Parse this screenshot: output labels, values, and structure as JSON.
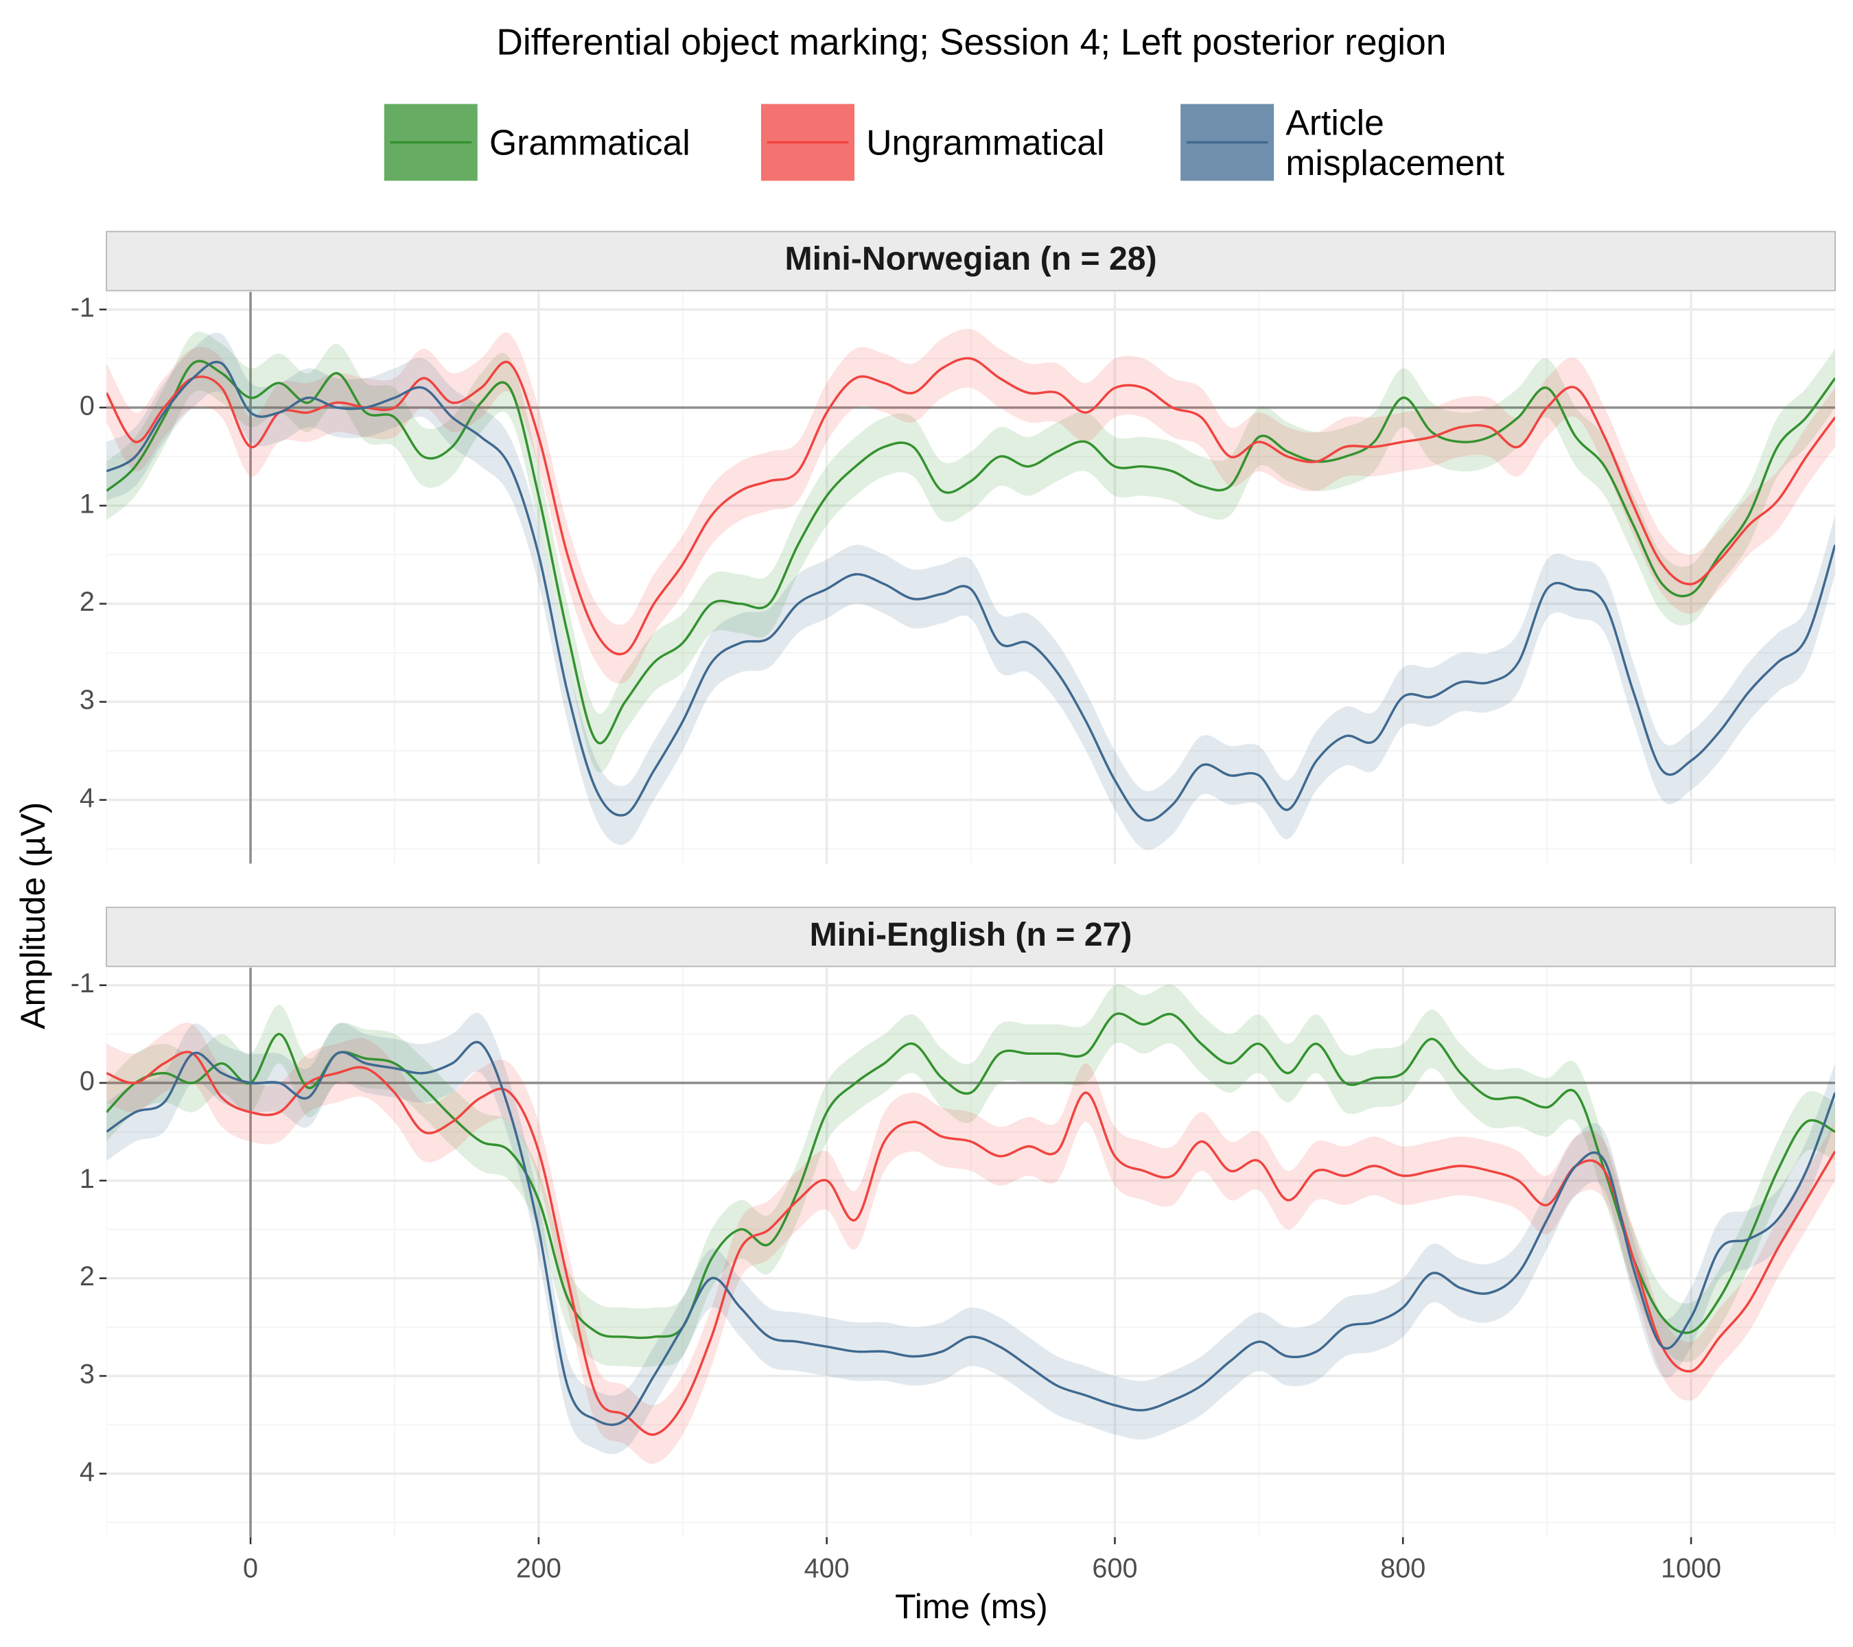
{
  "chart_data": [
    {
      "type": "line",
      "title": "Differential object marking; Session 4; Left posterior region",
      "facet": "Mini-Norwegian (n = 28)",
      "ylabel": "Amplitude (µV)",
      "x": [
        -100,
        -80,
        -60,
        -40,
        -20,
        0,
        20,
        40,
        60,
        80,
        100,
        120,
        140,
        160,
        180,
        200,
        220,
        240,
        260,
        280,
        300,
        320,
        340,
        360,
        380,
        400,
        420,
        440,
        460,
        480,
        500,
        520,
        540,
        560,
        580,
        600,
        620,
        640,
        660,
        680,
        700,
        720,
        740,
        760,
        780,
        800,
        820,
        840,
        860,
        880,
        900,
        920,
        940,
        960,
        980,
        1000,
        1020,
        1040,
        1060,
        1080,
        1100
      ],
      "xlim": [
        -100,
        1100
      ],
      "xticks": [
        0,
        200,
        400,
        600,
        800,
        1000
      ],
      "ylim": [
        -1.18,
        4.65
      ],
      "yticks": [
        -1,
        0,
        1,
        2,
        3,
        4
      ],
      "y_reversed": true,
      "grid": true,
      "series": [
        {
          "name": "Grammatical",
          "color": "#33922f",
          "error": 0.3,
          "values": [
            0.85,
            0.6,
            0.1,
            -0.45,
            -0.35,
            -0.1,
            -0.25,
            -0.05,
            -0.35,
            0.05,
            0.1,
            0.5,
            0.4,
            -0.05,
            -0.2,
            0.9,
            2.3,
            3.4,
            3.0,
            2.6,
            2.4,
            2.0,
            2.0,
            2.0,
            1.4,
            0.9,
            0.6,
            0.4,
            0.4,
            0.85,
            0.75,
            0.5,
            0.6,
            0.45,
            0.35,
            0.6,
            0.6,
            0.65,
            0.8,
            0.8,
            0.3,
            0.45,
            0.55,
            0.5,
            0.35,
            -0.1,
            0.25,
            0.35,
            0.3,
            0.1,
            -0.2,
            0.3,
            0.6,
            1.2,
            1.8,
            1.9,
            1.5,
            1.1,
            0.4,
            0.1,
            -0.3
          ]
        },
        {
          "name": "Ungrammatical",
          "color": "#f0433f",
          "error": 0.3,
          "values": [
            -0.15,
            0.35,
            0.0,
            -0.3,
            -0.2,
            0.4,
            0.05,
            0.05,
            -0.05,
            0.0,
            0.0,
            -0.3,
            -0.05,
            -0.2,
            -0.45,
            0.3,
            1.5,
            2.3,
            2.5,
            2.0,
            1.6,
            1.1,
            0.85,
            0.75,
            0.65,
            0.05,
            -0.3,
            -0.25,
            -0.15,
            -0.4,
            -0.5,
            -0.3,
            -0.15,
            -0.15,
            0.05,
            -0.2,
            -0.2,
            0.0,
            0.1,
            0.5,
            0.35,
            0.5,
            0.55,
            0.4,
            0.4,
            0.35,
            0.3,
            0.2,
            0.2,
            0.4,
            0.0,
            -0.2,
            0.3,
            1.0,
            1.6,
            1.8,
            1.55,
            1.2,
            0.95,
            0.5,
            0.1
          ]
        },
        {
          "name": "Article misplacement",
          "color": "#3f6990",
          "error": 0.3,
          "values": [
            0.65,
            0.5,
            0.05,
            -0.3,
            -0.45,
            0.05,
            0.05,
            -0.1,
            0.0,
            0.0,
            -0.1,
            -0.2,
            0.1,
            0.3,
            0.6,
            1.5,
            2.9,
            3.9,
            4.15,
            3.7,
            3.2,
            2.6,
            2.4,
            2.35,
            2.0,
            1.85,
            1.7,
            1.8,
            1.95,
            1.9,
            1.85,
            2.4,
            2.4,
            2.7,
            3.2,
            3.8,
            4.2,
            4.05,
            3.65,
            3.75,
            3.75,
            4.1,
            3.6,
            3.35,
            3.4,
            2.95,
            2.95,
            2.8,
            2.8,
            2.6,
            1.85,
            1.85,
            2.0,
            2.9,
            3.7,
            3.6,
            3.3,
            2.9,
            2.6,
            2.35,
            1.4
          ]
        }
      ]
    },
    {
      "type": "line",
      "facet": "Mini-English (n = 27)",
      "xlabel": "Time (ms)",
      "x": [
        -100,
        -80,
        -60,
        -40,
        -20,
        0,
        20,
        40,
        60,
        80,
        100,
        120,
        140,
        160,
        180,
        200,
        220,
        240,
        260,
        280,
        300,
        320,
        340,
        360,
        380,
        400,
        420,
        440,
        460,
        480,
        500,
        520,
        540,
        560,
        580,
        600,
        620,
        640,
        660,
        680,
        700,
        720,
        740,
        760,
        780,
        800,
        820,
        840,
        860,
        880,
        900,
        920,
        940,
        960,
        980,
        1000,
        1020,
        1040,
        1060,
        1080,
        1100
      ],
      "xlim": [
        -100,
        1100
      ],
      "xticks": [
        0,
        200,
        400,
        600,
        800,
        1000
      ],
      "ylim": [
        -1.18,
        4.65
      ],
      "yticks": [
        -1,
        0,
        1,
        2,
        3,
        4
      ],
      "y_reversed": true,
      "grid": true,
      "series": [
        {
          "name": "Grammatical",
          "color": "#33922f",
          "error": 0.3,
          "values": [
            0.3,
            0.0,
            -0.1,
            0.0,
            -0.2,
            0.0,
            -0.5,
            0.05,
            -0.3,
            -0.25,
            -0.2,
            0.05,
            0.35,
            0.6,
            0.7,
            1.2,
            2.2,
            2.55,
            2.6,
            2.6,
            2.5,
            1.8,
            1.5,
            1.65,
            1.1,
            0.3,
            0.0,
            -0.2,
            -0.4,
            -0.05,
            0.1,
            -0.3,
            -0.3,
            -0.3,
            -0.3,
            -0.7,
            -0.6,
            -0.7,
            -0.4,
            -0.2,
            -0.4,
            -0.1,
            -0.4,
            0.0,
            -0.05,
            -0.1,
            -0.45,
            -0.1,
            0.15,
            0.15,
            0.25,
            0.1,
            0.9,
            1.8,
            2.4,
            2.55,
            2.2,
            1.6,
            0.9,
            0.4,
            0.5
          ]
        },
        {
          "name": "Ungrammatical",
          "color": "#f0433f",
          "error": 0.3,
          "values": [
            -0.1,
            0.0,
            -0.2,
            -0.3,
            0.15,
            0.3,
            0.3,
            0.0,
            -0.1,
            -0.15,
            0.1,
            0.5,
            0.4,
            0.15,
            0.1,
            0.7,
            2.0,
            3.2,
            3.4,
            3.6,
            3.3,
            2.6,
            1.7,
            1.5,
            1.2,
            1.0,
            1.4,
            0.6,
            0.4,
            0.55,
            0.6,
            0.75,
            0.65,
            0.7,
            0.1,
            0.75,
            0.9,
            0.95,
            0.6,
            0.9,
            0.8,
            1.2,
            0.9,
            0.95,
            0.85,
            0.95,
            0.9,
            0.85,
            0.9,
            1.0,
            1.25,
            0.85,
            0.9,
            1.8,
            2.7,
            2.95,
            2.6,
            2.25,
            1.7,
            1.2,
            0.7
          ]
        },
        {
          "name": "Article misplacement",
          "color": "#3f6990",
          "error": 0.3,
          "values": [
            0.5,
            0.3,
            0.2,
            -0.3,
            -0.1,
            0.0,
            0.0,
            0.15,
            -0.3,
            -0.2,
            -0.15,
            -0.1,
            -0.2,
            -0.4,
            0.3,
            1.5,
            3.1,
            3.45,
            3.45,
            3.0,
            2.5,
            2.0,
            2.3,
            2.6,
            2.65,
            2.7,
            2.75,
            2.75,
            2.8,
            2.75,
            2.6,
            2.7,
            2.9,
            3.1,
            3.2,
            3.3,
            3.35,
            3.25,
            3.1,
            2.85,
            2.65,
            2.8,
            2.75,
            2.5,
            2.45,
            2.3,
            1.95,
            2.1,
            2.15,
            1.95,
            1.4,
            0.85,
            0.8,
            1.9,
            2.7,
            2.4,
            1.7,
            1.6,
            1.4,
            0.9,
            0.1
          ]
        }
      ]
    }
  ]
}
